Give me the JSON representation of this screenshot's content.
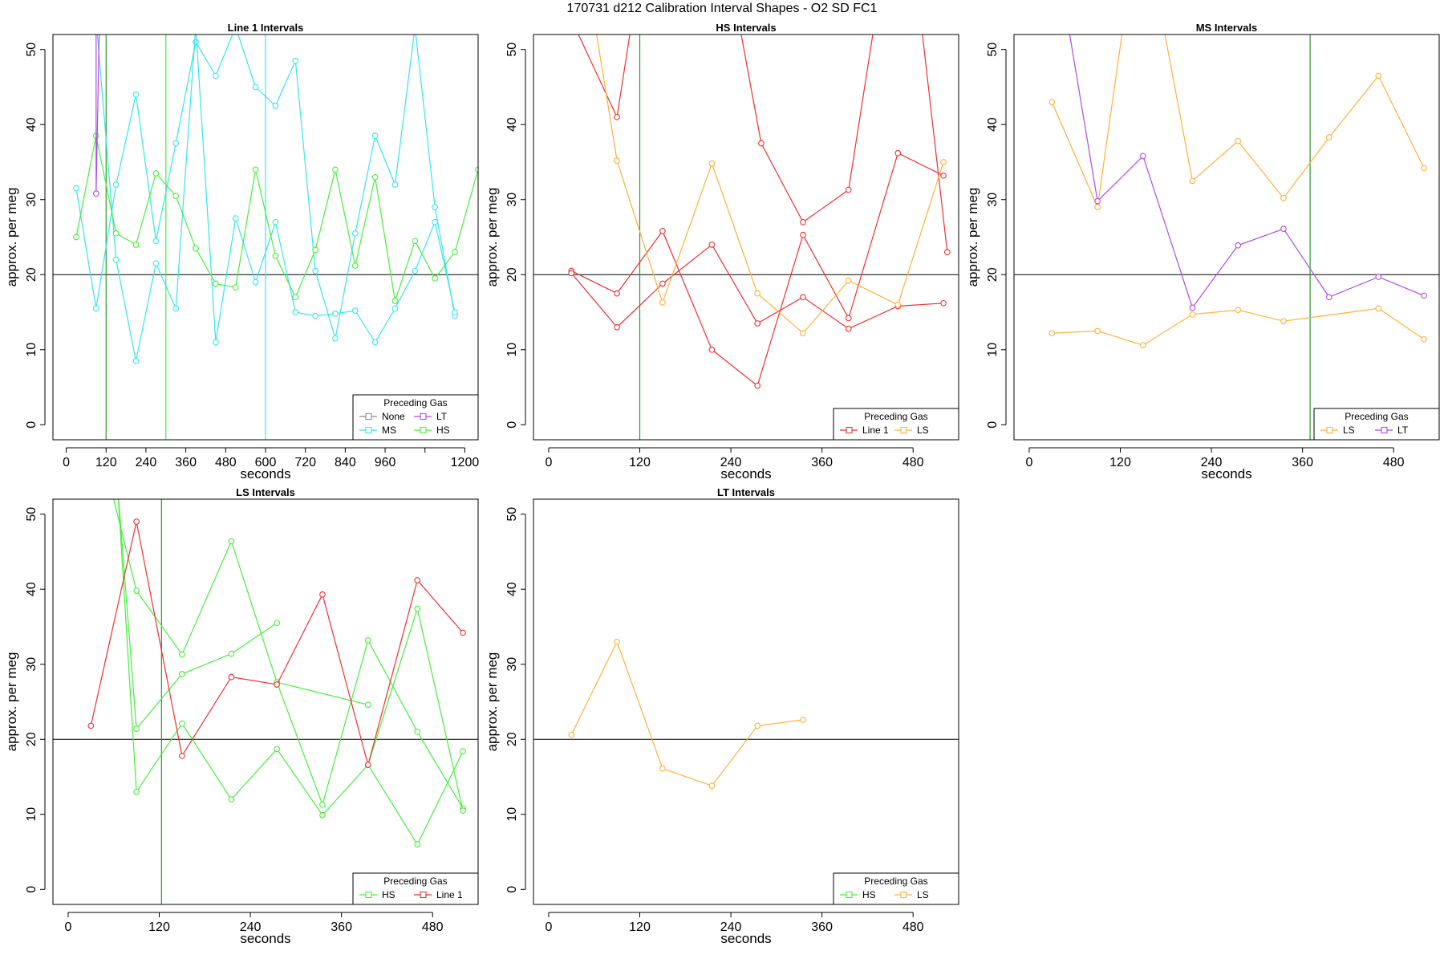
{
  "page_title": "170731   d212   Calibration Interval Shapes - O2 SD FC1",
  "colors": {
    "None": "#8c8c8c",
    "LT": "#b04adf",
    "MS": "#36e4f0",
    "HS": "#46ee3c",
    "Line 1": "#ee3030",
    "LS": "#ffb03a",
    "ref_line": "#000000",
    "vline": "#2a9a2a",
    "vline_cyan": "#36e4f0"
  },
  "chart_data": [
    {
      "type": "line",
      "title": "Line 1 Intervals",
      "xlabel": "seconds",
      "ylabel": "approx. per meg",
      "xlim": [
        -40,
        1240
      ],
      "ylim": [
        -2,
        52
      ],
      "x_ticks": [
        0,
        120,
        240,
        360,
        480,
        600,
        720,
        840,
        960,
        1080,
        1200
      ],
      "x_tick_labels": [
        "0",
        "120",
        "240",
        "360",
        "480",
        "600",
        "720",
        "840",
        "960",
        "",
        "1200"
      ],
      "y_ticks": [
        0,
        10,
        20,
        30,
        40,
        50
      ],
      "hline": 20,
      "vlines": [
        {
          "x": 120,
          "color_key": "vline"
        },
        {
          "x": 300,
          "color_key": "HS"
        },
        {
          "x": 600,
          "color_key": "vline_cyan"
        }
      ],
      "legend": {
        "title": "Preceding Gas",
        "entries": [
          "None",
          "LT",
          "MS",
          "HS"
        ],
        "columns": 2
      },
      "series": [
        {
          "name": "MS",
          "points": [
            [
              30,
              31.5
            ],
            [
              90,
              15.5
            ],
            [
              150,
              32
            ],
            [
              210,
              44
            ],
            [
              270,
              24.5
            ],
            [
              330,
              37.5
            ],
            [
              390,
              51
            ],
            [
              450,
              46.5
            ],
            [
              510,
              53
            ],
            [
              570,
              45
            ],
            [
              630,
              42.5
            ],
            [
              690,
              48.5
            ],
            [
              750,
              20.5
            ],
            [
              810,
              11.5
            ],
            [
              870,
              25.5
            ],
            [
              930,
              38.5
            ],
            [
              990,
              32
            ],
            [
              1050,
              53
            ],
            [
              1110,
              29
            ],
            [
              1170,
              14.5
            ]
          ]
        },
        {
          "name": "MS",
          "points": [
            [
              90,
              54
            ],
            [
              150,
              22
            ],
            [
              210,
              8.5
            ],
            [
              270,
              21.5
            ],
            [
              330,
              15.5
            ],
            [
              390,
              53
            ],
            [
              450,
              11
            ],
            [
              510,
              27.5
            ],
            [
              570,
              19
            ],
            [
              630,
              27
            ],
            [
              690,
              15
            ],
            [
              750,
              14.5
            ],
            [
              810,
              14.8
            ],
            [
              870,
              15.2
            ],
            [
              930,
              11
            ],
            [
              990,
              15.5
            ],
            [
              1050,
              20.5
            ],
            [
              1110,
              27
            ],
            [
              1170,
              15
            ]
          ]
        },
        {
          "name": "HS",
          "points": [
            [
              30,
              25
            ],
            [
              90,
              38.5
            ],
            [
              150,
              25.5
            ],
            [
              210,
              24
            ],
            [
              270,
              33.5
            ],
            [
              330,
              30.5
            ],
            [
              390,
              23.5
            ],
            [
              450,
              18.8
            ],
            [
              510,
              18.3
            ],
            [
              570,
              34
            ],
            [
              630,
              22.5
            ],
            [
              690,
              17
            ],
            [
              750,
              23.3
            ],
            [
              810,
              34
            ],
            [
              870,
              21.2
            ],
            [
              930,
              33
            ],
            [
              990,
              16.5
            ],
            [
              1050,
              24.5
            ],
            [
              1110,
              19.5
            ],
            [
              1170,
              23
            ],
            [
              1240,
              34
            ]
          ]
        },
        {
          "name": "LT",
          "points": [
            [
              90,
              54
            ],
            [
              90,
              30.8
            ],
            [
              100,
              54
            ]
          ]
        }
      ]
    },
    {
      "type": "line",
      "title": "HS Intervals",
      "xlabel": "seconds",
      "ylabel": "approx. per meg",
      "xlim": [
        -20,
        540
      ],
      "ylim": [
        -2,
        52
      ],
      "x_ticks": [
        0,
        120,
        240,
        360,
        480
      ],
      "x_tick_labels": [
        "0",
        "120",
        "240",
        "360",
        "480"
      ],
      "y_ticks": [
        0,
        10,
        20,
        30,
        40,
        50
      ],
      "hline": 20,
      "vlines": [
        {
          "x": 120,
          "color_key": "vline"
        }
      ],
      "legend": {
        "title": "Preceding Gas",
        "entries": [
          "Line 1",
          "LS"
        ],
        "columns": 2
      },
      "series": [
        {
          "name": "Line 1",
          "points": [
            [
              30,
              54
            ],
            [
              90,
              41
            ],
            [
              110,
              54
            ]
          ]
        },
        {
          "name": "Line 1",
          "points": [
            [
              250,
              54
            ],
            [
              280,
              37.5
            ],
            [
              335,
              27
            ],
            [
              395,
              31.3
            ],
            [
              430,
              54
            ]
          ]
        },
        {
          "name": "Line 1",
          "points": [
            [
              490,
              54
            ],
            [
              525,
              23
            ]
          ]
        },
        {
          "name": "Line 1",
          "points": [
            [
              30,
              20.5
            ],
            [
              90,
              17.5
            ],
            [
              150,
              25.8
            ],
            [
              215,
              10
            ],
            [
              275,
              5.2
            ],
            [
              335,
              25.3
            ],
            [
              395,
              14.2
            ],
            [
              460,
              36.2
            ],
            [
              520,
              33.2
            ]
          ]
        },
        {
          "name": "Line 1",
          "points": [
            [
              30,
              20.2
            ],
            [
              90,
              13
            ],
            [
              150,
              18.8
            ],
            [
              215,
              24
            ],
            [
              275,
              13.5
            ],
            [
              335,
              17
            ],
            [
              395,
              12.8
            ],
            [
              460,
              15.8
            ],
            [
              520,
              16.2
            ]
          ]
        },
        {
          "name": "LS",
          "points": [
            [
              60,
              54
            ],
            [
              90,
              35.2
            ],
            [
              150,
              16.3
            ],
            [
              215,
              34.8
            ],
            [
              275,
              17.5
            ],
            [
              335,
              12.2
            ],
            [
              395,
              19.2
            ],
            [
              460,
              16
            ],
            [
              520,
              35
            ]
          ]
        }
      ]
    },
    {
      "type": "line",
      "title": "MS Intervals",
      "xlabel": "seconds",
      "ylabel": "approx. per meg",
      "xlim": [
        -20,
        540
      ],
      "ylim": [
        -2,
        52
      ],
      "x_ticks": [
        0,
        120,
        240,
        360,
        480
      ],
      "x_tick_labels": [
        "0",
        "120",
        "240",
        "360",
        "480"
      ],
      "y_ticks": [
        0,
        10,
        20,
        30,
        40,
        50
      ],
      "hline": 20,
      "vlines": [
        {
          "x": 370,
          "color_key": "vline"
        }
      ],
      "legend": {
        "title": "Preceding Gas",
        "entries": [
          "LS",
          "LT"
        ],
        "columns": 2
      },
      "series": [
        {
          "name": "LS",
          "points": [
            [
              30,
              43
            ],
            [
              90,
              29
            ],
            [
              125,
              54
            ]
          ]
        },
        {
          "name": "LS",
          "points": [
            [
              175,
              54
            ],
            [
              215,
              32.5
            ],
            [
              275,
              37.8
            ],
            [
              335,
              30.2
            ],
            [
              395,
              38.3
            ],
            [
              460,
              46.5
            ],
            [
              520,
              34.2
            ]
          ]
        },
        {
          "name": "LS",
          "points": [
            [
              30,
              12.2
            ],
            [
              90,
              12.5
            ],
            [
              150,
              10.6
            ],
            [
              215,
              14.7
            ],
            [
              275,
              15.3
            ],
            [
              335,
              13.8
            ],
            [
              460,
              15.5
            ],
            [
              520,
              11.4
            ]
          ]
        },
        {
          "name": "LT",
          "points": [
            [
              50,
              54
            ],
            [
              90,
              29.8
            ],
            [
              150,
              35.8
            ],
            [
              215,
              15.6
            ],
            [
              275,
              23.9
            ],
            [
              335,
              26.1
            ],
            [
              395,
              17
            ],
            [
              460,
              19.7
            ],
            [
              520,
              17.2
            ]
          ]
        }
      ]
    },
    {
      "type": "line",
      "title": "LS Intervals",
      "xlabel": "seconds",
      "ylabel": "approx. per meg",
      "xlim": [
        -20,
        540
      ],
      "ylim": [
        -2,
        52
      ],
      "x_ticks": [
        0,
        120,
        240,
        360,
        480
      ],
      "x_tick_labels": [
        "0",
        "120",
        "240",
        "360",
        "480"
      ],
      "y_ticks": [
        0,
        10,
        20,
        30,
        40,
        50
      ],
      "hline": 20,
      "vlines": [
        {
          "x": 123,
          "color_key": "vline"
        }
      ],
      "legend": {
        "title": "Preceding Gas",
        "entries": [
          "HS",
          "Line 1"
        ],
        "columns": 2
      },
      "series": [
        {
          "name": "HS",
          "points": [
            [
              55,
              54
            ],
            [
              90,
              39.8
            ],
            [
              150,
              31.3
            ],
            [
              215,
              46.4
            ],
            [
              275,
              27.6
            ],
            [
              335,
              11.3
            ],
            [
              395,
              33.2
            ],
            [
              460,
              21
            ],
            [
              520,
              10.8
            ]
          ]
        },
        {
          "name": "HS",
          "points": [
            [
              65,
              54
            ],
            [
              90,
              21.4
            ],
            [
              150,
              28.7
            ],
            [
              215,
              31.4
            ],
            [
              275,
              35.5
            ]
          ]
        },
        {
          "name": "HS",
          "points": [
            [
              275,
              27.6
            ],
            [
              395,
              24.6
            ]
          ]
        },
        {
          "name": "HS",
          "points": [
            [
              65,
              54
            ],
            [
              90,
              13
            ],
            [
              150,
              22.1
            ],
            [
              215,
              12
            ],
            [
              275,
              18.7
            ],
            [
              335,
              9.9
            ],
            [
              395,
              16.6
            ],
            [
              460,
              37.4
            ],
            [
              520,
              10.5
            ]
          ]
        },
        {
          "name": "HS",
          "points": [
            [
              395,
              16.6
            ],
            [
              460,
              6
            ],
            [
              520,
              18.4
            ]
          ]
        },
        {
          "name": "Line 1",
          "points": [
            [
              30,
              21.8
            ],
            [
              90,
              49
            ],
            [
              150,
              17.8
            ],
            [
              215,
              28.3
            ],
            [
              275,
              27.3
            ],
            [
              335,
              39.3
            ],
            [
              395,
              16.6
            ],
            [
              460,
              41.2
            ],
            [
              520,
              34.2
            ]
          ]
        }
      ]
    },
    {
      "type": "line",
      "title": "LT Intervals",
      "xlabel": "seconds",
      "ylabel": "approx. per meg",
      "xlim": [
        -20,
        540
      ],
      "ylim": [
        -2,
        52
      ],
      "x_ticks": [
        0,
        120,
        240,
        360,
        480
      ],
      "x_tick_labels": [
        "0",
        "120",
        "240",
        "360",
        "480"
      ],
      "y_ticks": [
        0,
        10,
        20,
        30,
        40,
        50
      ],
      "hline": 20,
      "vlines": [],
      "legend": {
        "title": "Preceding Gas",
        "entries": [
          "HS",
          "LS"
        ],
        "columns": 2
      },
      "series": [
        {
          "name": "LS",
          "points": [
            [
              30,
              20.6
            ],
            [
              90,
              33
            ],
            [
              150,
              16.1
            ],
            [
              215,
              13.8
            ],
            [
              275,
              21.8
            ],
            [
              335,
              22.6
            ]
          ]
        }
      ]
    }
  ]
}
